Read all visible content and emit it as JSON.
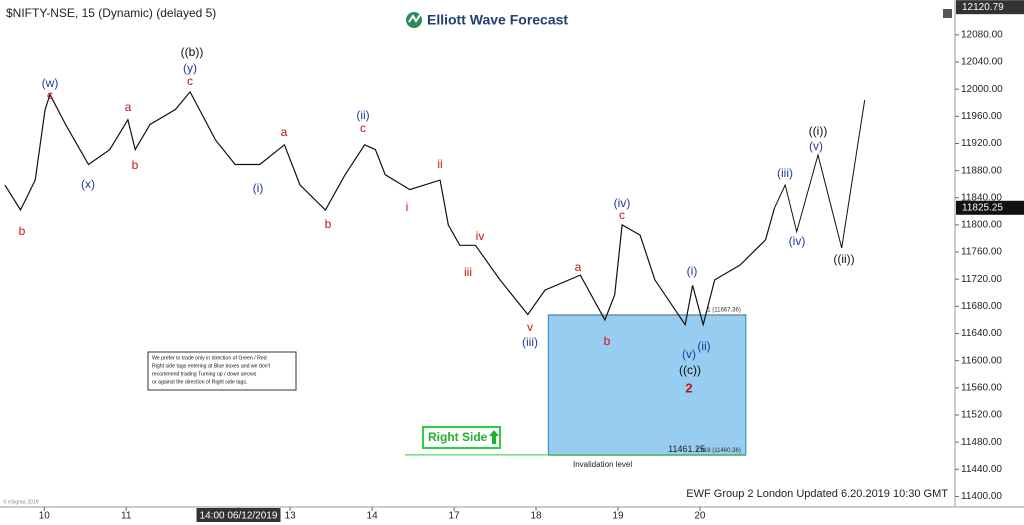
{
  "chart_data": {
    "type": "line",
    "title": "$NIFTY-NSE, 15 (Dynamic) (delayed 5)",
    "brand": "Elliott Wave Forecast",
    "footer": "EWF Group 2 London Updated 6.20.2019 10:30 GMT",
    "copyright": "© eSignal, 2019",
    "note": [
      "We prefer to trade only in direction of Green / Red",
      "Right side tags entering at Blue boxes and we don't",
      "recommend trading Turning up / down arrows",
      "or against the direction of Right side tags."
    ],
    "right_side": "Right Side",
    "invalidation_text": "Invalidation level",
    "invalidation": 11461.25,
    "fib_levels": [
      {
        "value": 11667.36,
        "label": "1 (11667.36)"
      },
      {
        "value": 11460.36,
        "label": "1.618 (11460.36)"
      }
    ],
    "box_x": [
      6.15,
      8.56
    ],
    "last_price": 11825.25,
    "top_price": 12120.79,
    "x": [
      -0.48,
      -0.29,
      -0.11,
      0.01,
      0.07,
      0.26,
      0.54,
      0.8,
      1.02,
      1.11,
      1.29,
      1.6,
      1.78,
      2.09,
      2.33,
      2.63,
      2.93,
      3.12,
      3.43,
      3.67,
      3.91,
      4.04,
      4.16,
      4.46,
      4.83,
      4.93,
      5.07,
      5.26,
      5.56,
      5.9,
      6.11,
      6.54,
      6.84,
      6.96,
      7.05,
      7.27,
      7.45,
      7.82,
      7.91,
      8.04,
      8.18,
      8.49,
      8.8,
      8.91
    ],
    "values": [
      11859,
      11822,
      11866,
      11970,
      11992,
      11948,
      11889,
      11911,
      11955,
      11911,
      11948,
      11970,
      11996,
      11925,
      11889,
      11889,
      11918,
      11859,
      11822,
      11874,
      11918,
      11911,
      11874,
      11852,
      11866,
      11800,
      11770,
      11770,
      11719,
      11668,
      11704,
      11726,
      11660,
      11697,
      11800,
      11785,
      11719,
      11653,
      11711,
      11653,
      11719,
      11741,
      11778,
      11825
    ],
    "projection": {
      "x": [
        8.91,
        9.04,
        9.18,
        9.44,
        9.73,
        10.01
      ],
      "values": [
        11825,
        11859,
        11790,
        11903,
        11766,
        11984
      ]
    },
    "annotations": [
      "(w)",
      "c",
      "b",
      "a",
      "b",
      "(x)",
      "((b))",
      "(y)",
      "c",
      "a",
      "(i)",
      "b",
      "(ii)",
      "c",
      "ii",
      "i",
      "iv",
      "iii",
      "v",
      "(iii)",
      "a",
      "b",
      "(iv)",
      "c",
      "(i)",
      "(v)",
      "(ii)",
      "((c))",
      "2",
      "(iii)",
      "(iv)",
      "((i))",
      "(v)",
      "((ii))"
    ],
    "xlim": [
      -0.54,
      10.99
    ],
    "xticks": [
      {
        "value": 0,
        "label": "10"
      },
      {
        "value": 1,
        "label": "11"
      },
      {
        "value": 2.37,
        "label": "14:00 06/12/2019"
      },
      {
        "value": 3,
        "label": "13"
      },
      {
        "value": 4,
        "label": "14"
      },
      {
        "value": 5,
        "label": "17"
      },
      {
        "value": 6,
        "label": "18"
      },
      {
        "value": 7,
        "label": "19"
      },
      {
        "value": 8,
        "label": "20"
      }
    ],
    "ylim": [
      11380,
      12124
    ],
    "yticks": [
      {
        "value": 11400,
        "label": "11400.00"
      },
      {
        "value": 11440,
        "label": "11440.00"
      },
      {
        "value": 11480,
        "label": "11480.00"
      },
      {
        "value": 11520,
        "label": "11520.00"
      },
      {
        "value": 11560,
        "label": "11560.00"
      },
      {
        "value": 11600,
        "label": "11600.00"
      },
      {
        "value": 11640,
        "label": "11640.00"
      },
      {
        "value": 11680,
        "label": "11680.00"
      },
      {
        "value": 11720,
        "label": "11720.00"
      },
      {
        "value": 11760,
        "label": "11760.00"
      },
      {
        "value": 11800,
        "label": "11800.00"
      },
      {
        "value": 11840,
        "label": "11840.00"
      },
      {
        "value": 11880,
        "label": "11880.00"
      },
      {
        "value": 11920,
        "label": "11920.00"
      },
      {
        "value": 11960,
        "label": "11960.00"
      },
      {
        "value": 12000,
        "label": "12000.00"
      },
      {
        "value": 12040,
        "label": "12040.00"
      },
      {
        "value": 12080,
        "label": "12080.00"
      }
    ],
    "color": "#111111"
  }
}
